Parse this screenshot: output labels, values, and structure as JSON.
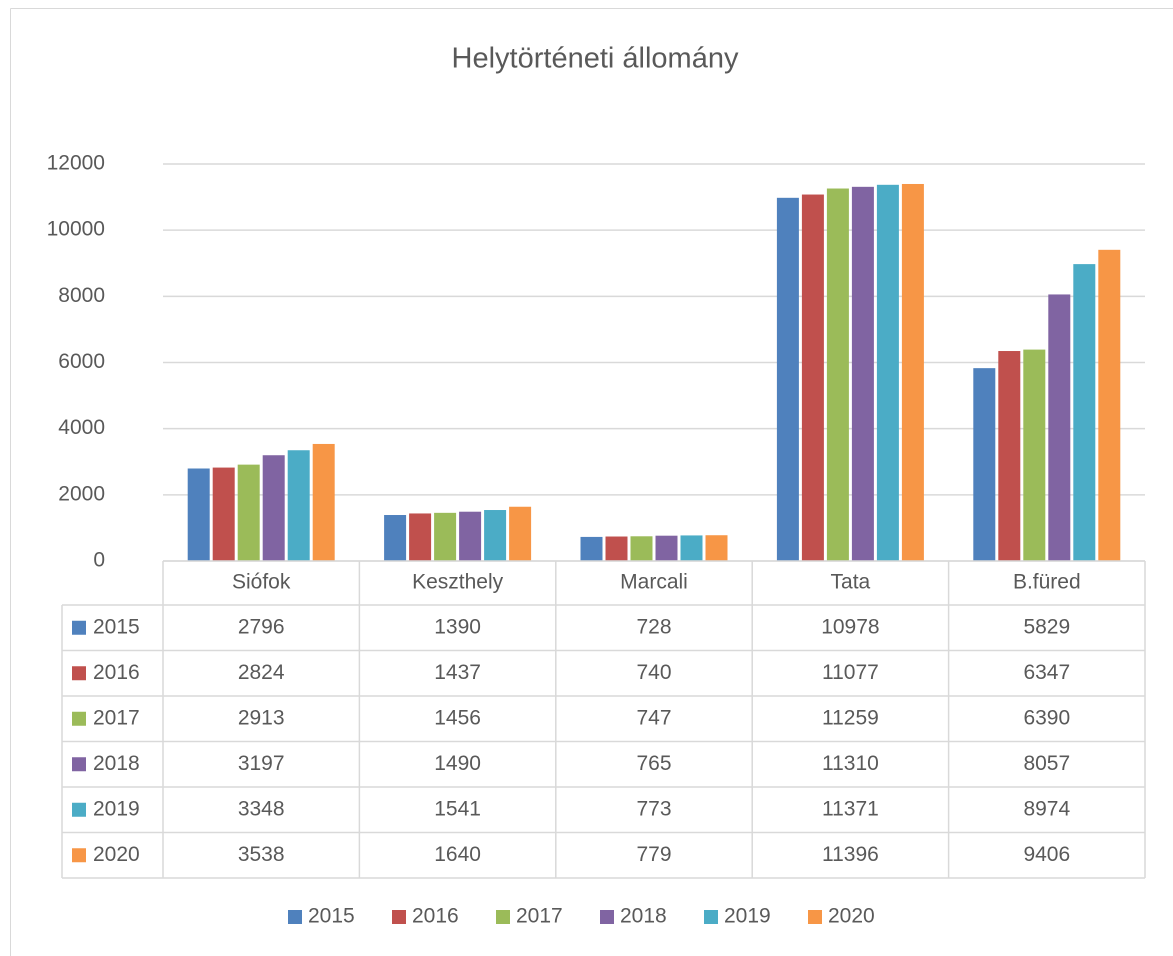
{
  "chart_data": {
    "type": "bar",
    "title": "Helytörténeti állomány",
    "categories": [
      "Siófok",
      "Keszthely",
      "Marcali",
      "Tata",
      "B.füred"
    ],
    "series": [
      {
        "name": "2015",
        "color": "#4f81bd",
        "values": [
          2796,
          1390,
          728,
          10978,
          5829
        ]
      },
      {
        "name": "2016",
        "color": "#c0504d",
        "values": [
          2824,
          1437,
          740,
          11077,
          6347
        ]
      },
      {
        "name": "2017",
        "color": "#9bbb59",
        "values": [
          2913,
          1456,
          747,
          11259,
          6390
        ]
      },
      {
        "name": "2018",
        "color": "#8064a2",
        "values": [
          3197,
          1490,
          765,
          11310,
          8057
        ]
      },
      {
        "name": "2019",
        "color": "#4bacc6",
        "values": [
          3348,
          1541,
          773,
          11371,
          8974
        ]
      },
      {
        "name": "2020",
        "color": "#f79646",
        "values": [
          3538,
          1640,
          779,
          11396,
          9406
        ]
      }
    ],
    "ylim": [
      0,
      12000
    ],
    "yticks": [
      0,
      2000,
      4000,
      6000,
      8000,
      10000,
      12000
    ],
    "grid": true,
    "data_table": true,
    "legend": "bottom"
  }
}
